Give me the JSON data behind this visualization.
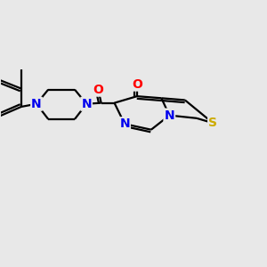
{
  "background_color": "#e8e8e8",
  "bond_color": "#000000",
  "bond_width": 1.6,
  "atom_colors": {
    "N": "#0000ee",
    "O": "#ff0000",
    "S": "#ccaa00",
    "C": "#000000"
  },
  "font_size_atoms": 10,
  "xlim": [
    -4.5,
    5.5
  ],
  "ylim": [
    -3.0,
    3.5
  ]
}
